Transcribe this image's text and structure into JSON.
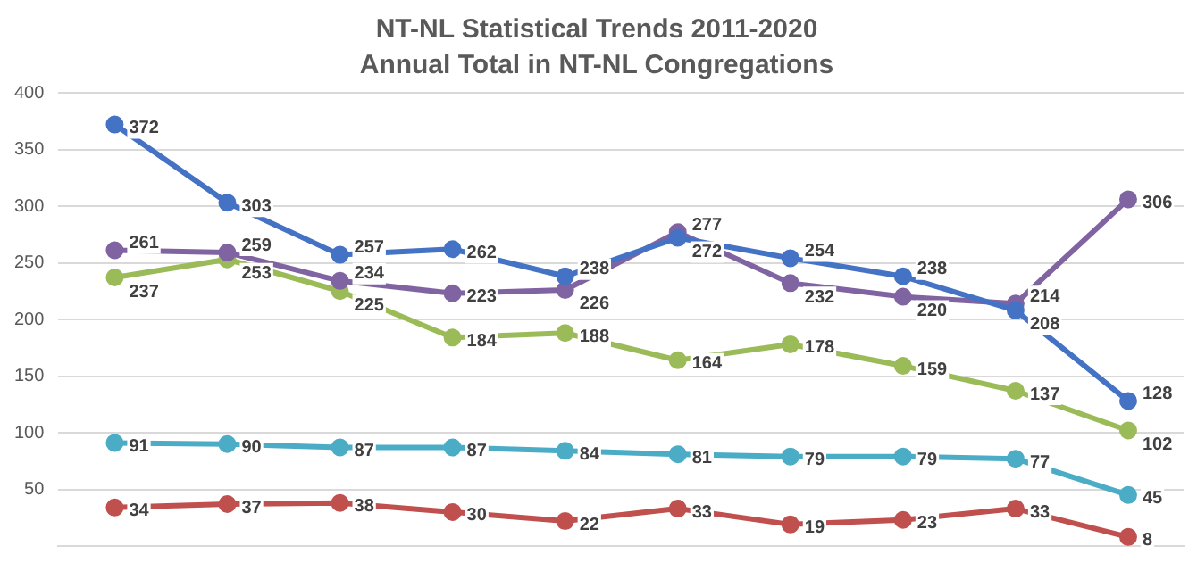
{
  "chart_data": {
    "type": "line",
    "title": "NT-NL Statistical Trends 2011-2020",
    "subtitle": "Annual Total in NT-NL Congregations",
    "categories": [
      null,
      null,
      null,
      null,
      null,
      null,
      null,
      null,
      null,
      null
    ],
    "series": [
      {
        "color": "#4472c4",
        "values": [
          372,
          303,
          257,
          262,
          238,
          272,
          254,
          238,
          208,
          128
        ]
      },
      {
        "color": "#8064a2",
        "values": [
          261,
          259,
          234,
          223,
          226,
          277,
          232,
          220,
          214,
          306
        ]
      },
      {
        "color": "#9bbb59",
        "values": [
          237,
          253,
          225,
          184,
          188,
          164,
          178,
          159,
          137,
          102
        ]
      },
      {
        "color": "#4bacc6",
        "values": [
          91,
          90,
          87,
          87,
          84,
          81,
          79,
          79,
          77,
          45
        ]
      },
      {
        "color": "#c0504d",
        "values": [
          34,
          37,
          38,
          30,
          22,
          33,
          19,
          23,
          33,
          8
        ]
      }
    ],
    "ylim": [
      0,
      400
    ],
    "yticks": [
      50,
      100,
      150,
      200,
      250,
      300,
      350,
      400
    ],
    "grid": "y",
    "legend": false,
    "marker": "circle",
    "line_style": "solid",
    "data_labels": true
  }
}
